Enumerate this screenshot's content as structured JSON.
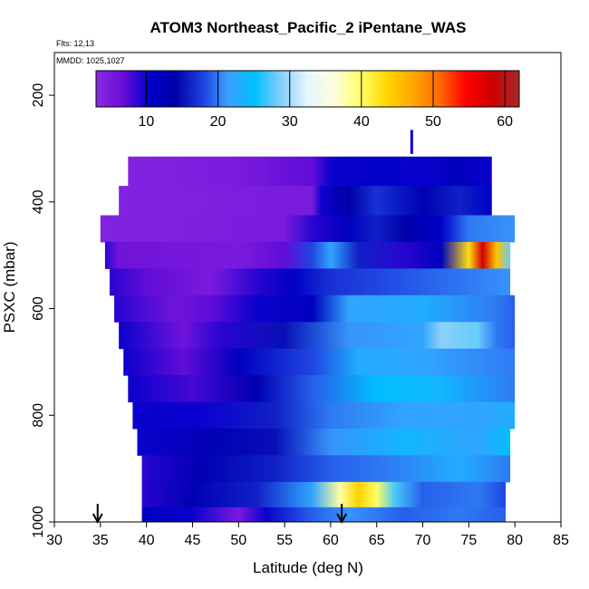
{
  "header": {
    "title": "ATOM3 Northeast_Pacific_2 iPentane_WAS",
    "flights": "Flts: 12,13",
    "mmdd": "MMDD: 1025,1027"
  },
  "chart_data": {
    "type": "heatmap",
    "title": "ATOM3 Northeast_Pacific_2 iPentane_WAS",
    "xlabel": "Latitude (deg N)",
    "ylabel": "PSXC (mbar)",
    "xlim": [
      30,
      85
    ],
    "ylim": [
      1000,
      120
    ],
    "y_reversed": true,
    "x_ticks": [
      30,
      35,
      40,
      45,
      50,
      55,
      60,
      65,
      70,
      75,
      80,
      85
    ],
    "y_ticks": [
      200,
      400,
      600,
      800,
      1000
    ],
    "colorbar": {
      "range": [
        3,
        62
      ],
      "ticks": [
        10,
        20,
        30,
        40,
        50,
        60
      ],
      "colors": [
        "#8a2be2",
        "#6a0dd8",
        "#0000cd",
        "#0000a8",
        "#1e3ee0",
        "#3aa0ff",
        "#00bfff",
        "#87cefa",
        "#e6f7ff",
        "#fffde0",
        "#ffff66",
        "#ffd700",
        "#ffa500",
        "#ff6a00",
        "#ff0000",
        "#cc0000",
        "#a52a2a"
      ]
    },
    "layers": [
      {
        "p": 340,
        "lat0": 38.0,
        "lat1": 77.5,
        "values": [
          {
            "lat": 38,
            "v": 4
          },
          {
            "lat": 50,
            "v": 5
          },
          {
            "lat": 58,
            "v": 7
          },
          {
            "lat": 60,
            "v": 10
          },
          {
            "lat": 66,
            "v": 11
          },
          {
            "lat": 70,
            "v": 10
          },
          {
            "lat": 74,
            "v": 12
          },
          {
            "lat": 77.5,
            "v": 10
          }
        ]
      },
      {
        "p": 400,
        "lat0": 37.0,
        "lat1": 77.5,
        "values": [
          {
            "lat": 37,
            "v": 4
          },
          {
            "lat": 58,
            "v": 5
          },
          {
            "lat": 59,
            "v": 10
          },
          {
            "lat": 62,
            "v": 14
          },
          {
            "lat": 65,
            "v": 17
          },
          {
            "lat": 70,
            "v": 13
          },
          {
            "lat": 74,
            "v": 16
          },
          {
            "lat": 77.5,
            "v": 11
          }
        ]
      },
      {
        "p": 450,
        "lat0": 35.0,
        "lat1": 80.0,
        "values": [
          {
            "lat": 35,
            "v": 4
          },
          {
            "lat": 55,
            "v": 5
          },
          {
            "lat": 58,
            "v": 9
          },
          {
            "lat": 62,
            "v": 12
          },
          {
            "lat": 65,
            "v": 16
          },
          {
            "lat": 68,
            "v": 14
          },
          {
            "lat": 72,
            "v": 11
          },
          {
            "lat": 75,
            "v": 20
          },
          {
            "lat": 80,
            "v": 21
          }
        ]
      },
      {
        "p": 500,
        "lat0": 35.5,
        "lat1": 79.5,
        "values": [
          {
            "lat": 35.5,
            "v": 9
          },
          {
            "lat": 37,
            "v": 6
          },
          {
            "lat": 50,
            "v": 5
          },
          {
            "lat": 55,
            "v": 7
          },
          {
            "lat": 58,
            "v": 18
          },
          {
            "lat": 60,
            "v": 22
          },
          {
            "lat": 63,
            "v": 16
          },
          {
            "lat": 68,
            "v": 9
          },
          {
            "lat": 72,
            "v": 12
          },
          {
            "lat": 75,
            "v": 43
          },
          {
            "lat": 76.5,
            "v": 58
          },
          {
            "lat": 78,
            "v": 45
          },
          {
            "lat": 79.5,
            "v": 28
          }
        ]
      },
      {
        "p": 550,
        "lat0": 36.0,
        "lat1": 79.5,
        "values": [
          {
            "lat": 36,
            "v": 9
          },
          {
            "lat": 40,
            "v": 7
          },
          {
            "lat": 47,
            "v": 5
          },
          {
            "lat": 52,
            "v": 9
          },
          {
            "lat": 56,
            "v": 11
          },
          {
            "lat": 60,
            "v": 17
          },
          {
            "lat": 65,
            "v": 18
          },
          {
            "lat": 70,
            "v": 19
          },
          {
            "lat": 75,
            "v": 20
          },
          {
            "lat": 79.5,
            "v": 21
          }
        ]
      },
      {
        "p": 600,
        "lat0": 36.5,
        "lat1": 80.0,
        "values": [
          {
            "lat": 36.5,
            "v": 9
          },
          {
            "lat": 43,
            "v": 6
          },
          {
            "lat": 47,
            "v": 7
          },
          {
            "lat": 52,
            "v": 10
          },
          {
            "lat": 58,
            "v": 12
          },
          {
            "lat": 62,
            "v": 22
          },
          {
            "lat": 70,
            "v": 23
          },
          {
            "lat": 78,
            "v": 20
          },
          {
            "lat": 80,
            "v": 19
          }
        ]
      },
      {
        "p": 650,
        "lat0": 37.0,
        "lat1": 80.0,
        "values": [
          {
            "lat": 37,
            "v": 10
          },
          {
            "lat": 44,
            "v": 6
          },
          {
            "lat": 48,
            "v": 9
          },
          {
            "lat": 55,
            "v": 15
          },
          {
            "lat": 62,
            "v": 21
          },
          {
            "lat": 70,
            "v": 22
          },
          {
            "lat": 72,
            "v": 29
          },
          {
            "lat": 76,
            "v": 28
          },
          {
            "lat": 78,
            "v": 20
          },
          {
            "lat": 80,
            "v": 19
          }
        ]
      },
      {
        "p": 700,
        "lat0": 37.5,
        "lat1": 80.0,
        "values": [
          {
            "lat": 37.5,
            "v": 10
          },
          {
            "lat": 44,
            "v": 7
          },
          {
            "lat": 50,
            "v": 12
          },
          {
            "lat": 58,
            "v": 18
          },
          {
            "lat": 63,
            "v": 23
          },
          {
            "lat": 70,
            "v": 22
          },
          {
            "lat": 80,
            "v": 20
          }
        ]
      },
      {
        "p": 750,
        "lat0": 38.0,
        "lat1": 80.0,
        "values": [
          {
            "lat": 38,
            "v": 10
          },
          {
            "lat": 45,
            "v": 8
          },
          {
            "lat": 52,
            "v": 13
          },
          {
            "lat": 58,
            "v": 19
          },
          {
            "lat": 65,
            "v": 25
          },
          {
            "lat": 72,
            "v": 24
          },
          {
            "lat": 80,
            "v": 20
          }
        ]
      },
      {
        "p": 800,
        "lat0": 38.5,
        "lat1": 80.0,
        "values": [
          {
            "lat": 38.5,
            "v": 10
          },
          {
            "lat": 46,
            "v": 10
          },
          {
            "lat": 54,
            "v": 16
          },
          {
            "lat": 60,
            "v": 20
          },
          {
            "lat": 68,
            "v": 22
          },
          {
            "lat": 76,
            "v": 22
          },
          {
            "lat": 80,
            "v": 23
          }
        ]
      },
      {
        "p": 850,
        "lat0": 39.0,
        "lat1": 79.5,
        "values": [
          {
            "lat": 39,
            "v": 10
          },
          {
            "lat": 47,
            "v": 13
          },
          {
            "lat": 54,
            "v": 15
          },
          {
            "lat": 60,
            "v": 21
          },
          {
            "lat": 68,
            "v": 24
          },
          {
            "lat": 76,
            "v": 22
          },
          {
            "lat": 79.5,
            "v": 25
          }
        ]
      },
      {
        "p": 900,
        "lat0": 39.5,
        "lat1": 79.5,
        "values": [
          {
            "lat": 39.5,
            "v": 9
          },
          {
            "lat": 46,
            "v": 13
          },
          {
            "lat": 54,
            "v": 16
          },
          {
            "lat": 60,
            "v": 19
          },
          {
            "lat": 66,
            "v": 20
          },
          {
            "lat": 74,
            "v": 23
          },
          {
            "lat": 79.5,
            "v": 20
          }
        ]
      },
      {
        "p": 950,
        "lat0": 39.5,
        "lat1": 79.0,
        "values": [
          {
            "lat": 39.5,
            "v": 9
          },
          {
            "lat": 45,
            "v": 13
          },
          {
            "lat": 52,
            "v": 16
          },
          {
            "lat": 58,
            "v": 22
          },
          {
            "lat": 61,
            "v": 38
          },
          {
            "lat": 63,
            "v": 44
          },
          {
            "lat": 65,
            "v": 40
          },
          {
            "lat": 67,
            "v": 27
          },
          {
            "lat": 70,
            "v": 19
          },
          {
            "lat": 76,
            "v": 20
          },
          {
            "lat": 79,
            "v": 18
          }
        ]
      },
      {
        "p": 995,
        "lat0": 39.5,
        "lat1": 79.0,
        "values": [
          {
            "lat": 39.5,
            "v": 12
          },
          {
            "lat": 45,
            "v": 10
          },
          {
            "lat": 50,
            "v": 5
          },
          {
            "lat": 53,
            "v": 10
          },
          {
            "lat": 58,
            "v": 19
          },
          {
            "lat": 62,
            "v": 21
          },
          {
            "lat": 68,
            "v": 19
          },
          {
            "lat": 74,
            "v": 20
          },
          {
            "lat": 79,
            "v": 19
          }
        ]
      }
    ],
    "spike": {
      "lat": 68.8,
      "p_top": 265,
      "p_bottom": 310,
      "v": 10
    },
    "arrows": [
      {
        "lat": 34.7,
        "label": ""
      },
      {
        "lat": 61.2,
        "label": ""
      }
    ]
  }
}
